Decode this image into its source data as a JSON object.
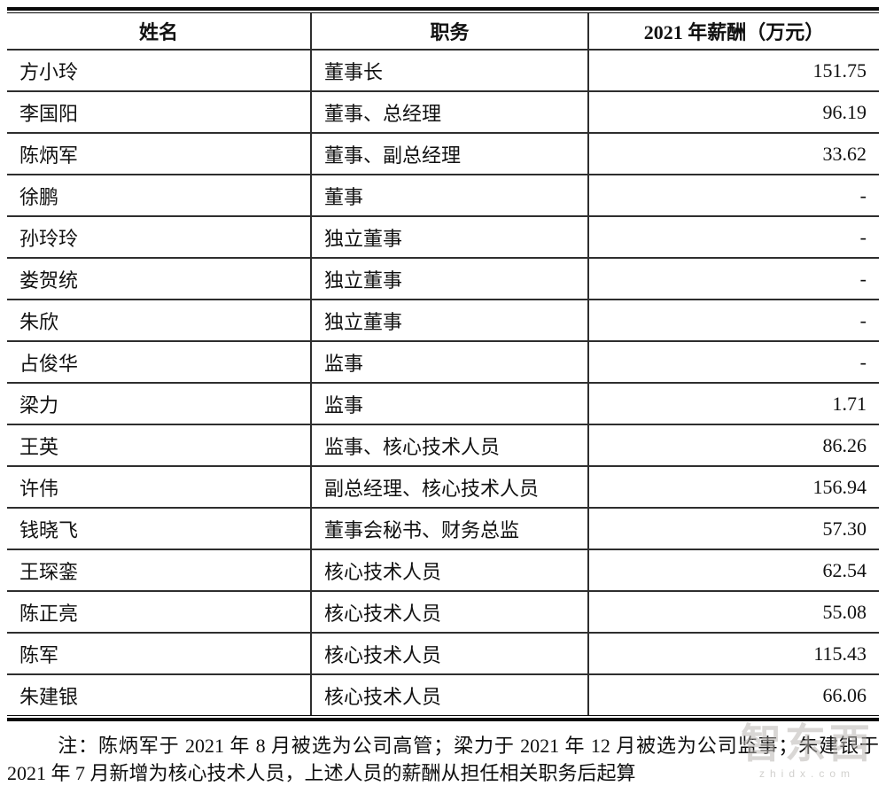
{
  "table": {
    "headers": [
      "姓名",
      "职务",
      "2021 年薪酬（万元）"
    ],
    "rows": [
      {
        "name": "方小玲",
        "title": "董事长",
        "salary": "151.75"
      },
      {
        "name": "李国阳",
        "title": "董事、总经理",
        "salary": "96.19"
      },
      {
        "name": "陈炳军",
        "title": "董事、副总经理",
        "salary": "33.62"
      },
      {
        "name": "徐鹏",
        "title": "董事",
        "salary": "-"
      },
      {
        "name": "孙玲玲",
        "title": "独立董事",
        "salary": "-"
      },
      {
        "name": "娄贺统",
        "title": "独立董事",
        "salary": "-"
      },
      {
        "name": "朱欣",
        "title": "独立董事",
        "salary": "-"
      },
      {
        "name": "占俊华",
        "title": "监事",
        "salary": "-"
      },
      {
        "name": "梁力",
        "title": "监事",
        "salary": "1.71"
      },
      {
        "name": "王英",
        "title": "监事、核心技术人员",
        "salary": "86.26"
      },
      {
        "name": "许伟",
        "title": "副总经理、核心技术人员",
        "salary": "156.94"
      },
      {
        "name": "钱晓飞",
        "title": "董事会秘书、财务总监",
        "salary": "57.30"
      },
      {
        "name": "王琛銮",
        "title": "核心技术人员",
        "salary": "62.54"
      },
      {
        "name": "陈正亮",
        "title": "核心技术人员",
        "salary": "55.08"
      },
      {
        "name": "陈军",
        "title": "核心技术人员",
        "salary": "115.43"
      },
      {
        "name": "朱建银",
        "title": "核心技术人员",
        "salary": "66.06"
      }
    ]
  },
  "note": {
    "text": "注：陈炳军于 2021 年 8 月被选为公司高管；梁力于 2021 年 12 月被选为公司监事；朱建银于 2021 年 7 月新增为核心技术人员，上述人员的薪酬从担任相关职务后起算"
  },
  "watermark": {
    "text": "智东西",
    "subtext": "zhidx.com"
  },
  "colors": {
    "border": "#2e2e2e",
    "text": "#111111",
    "watermark": "#b9b7b2"
  }
}
